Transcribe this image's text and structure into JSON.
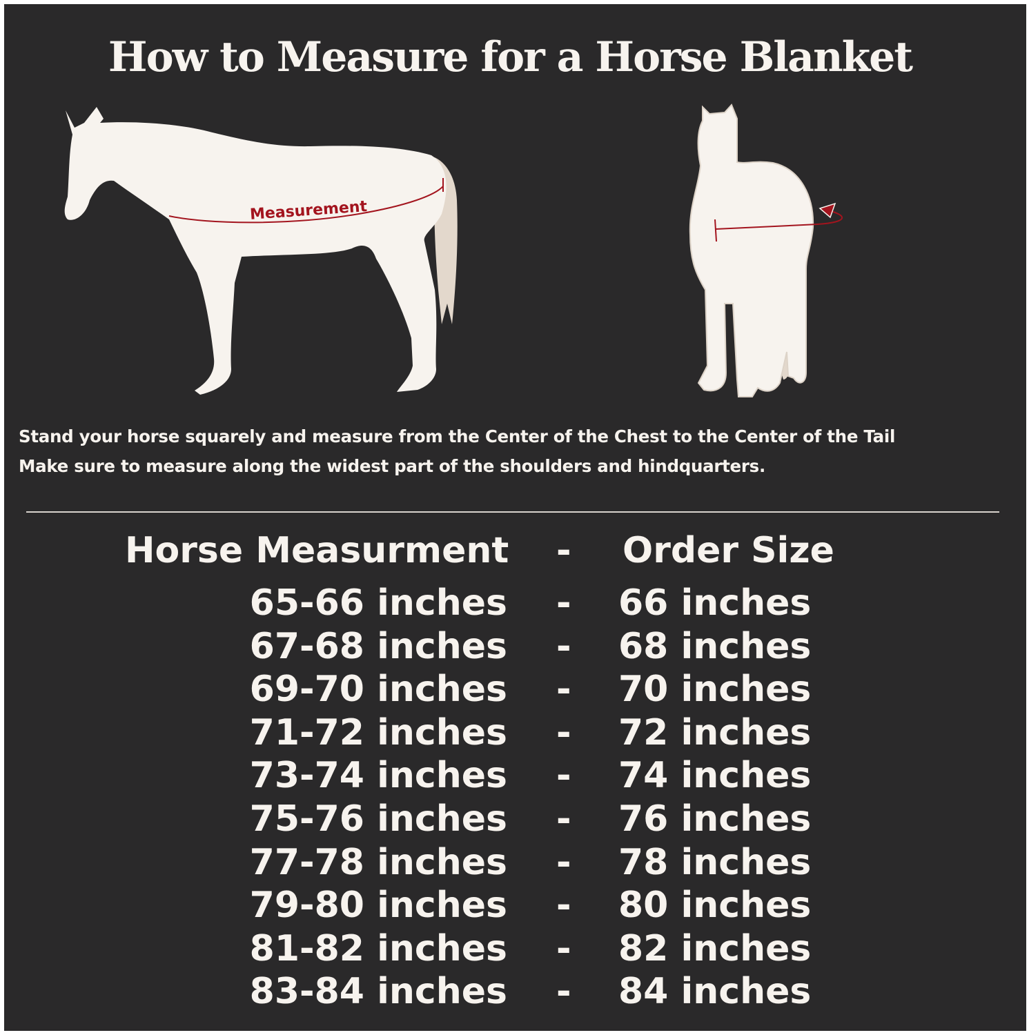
{
  "title": "How to Measure for a Horse Blanket",
  "diagram": {
    "measurement_label": "Measurement",
    "colors": {
      "background": "#2a292a",
      "horse": "#f7f3ee",
      "tail": "#e3d8cc",
      "measure_line": "#a3141e"
    }
  },
  "instructions": [
    "Stand your horse squarely and measure from the Center of the Chest to the Center of the Tail",
    "Make sure to measure along the widest part of the shoulders and hindquarters."
  ],
  "table": {
    "headers": {
      "measurement": "Horse Measurment",
      "separator": "-",
      "size": "Order Size"
    },
    "rows": [
      {
        "measurement": "65-66 inches",
        "separator": "-",
        "size": "66 inches"
      },
      {
        "measurement": "67-68 inches",
        "separator": "-",
        "size": "68 inches"
      },
      {
        "measurement": "69-70 inches",
        "separator": "-",
        "size": "70 inches"
      },
      {
        "measurement": "71-72 inches",
        "separator": "-",
        "size": "72 inches"
      },
      {
        "measurement": "73-74 inches",
        "separator": "-",
        "size": "74 inches"
      },
      {
        "measurement": "75-76 inches",
        "separator": "-",
        "size": "76 inches"
      },
      {
        "measurement": "77-78 inches",
        "separator": "-",
        "size": "78 inches"
      },
      {
        "measurement": "79-80 inches",
        "separator": "-",
        "size": "80 inches"
      },
      {
        "measurement": "81-82 inches",
        "separator": "-",
        "size": "82 inches"
      },
      {
        "measurement": "83-84 inches",
        "separator": "-",
        "size": "84 inches"
      }
    ]
  }
}
